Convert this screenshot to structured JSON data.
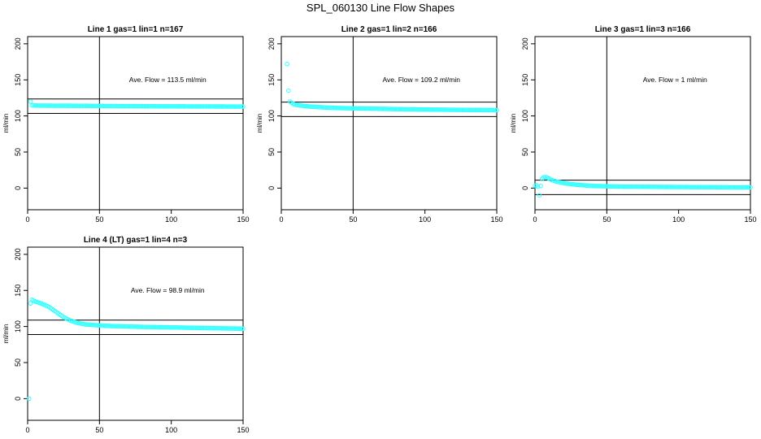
{
  "title": "SPL_060130  Line Flow Shapes",
  "colors": {
    "points": "#33ffff",
    "axes": "#000000",
    "background": "#ffffff"
  },
  "chart_data": [
    {
      "type": "scatter",
      "title": "Line 1 gas=1 lin=1 n=167",
      "ylabel": "ml/min",
      "annotation": "Ave. Flow =  113.5  ml/min",
      "xlim": [
        0,
        150
      ],
      "ylim": [
        -30,
        210
      ],
      "xticks": [
        0,
        50,
        100,
        150
      ],
      "yticks": [
        0,
        50,
        100,
        150,
        200
      ],
      "hlines": [
        123.5,
        103.5
      ],
      "vlines": [
        50
      ],
      "points": [
        [
          2,
          120
        ],
        [
          3,
          114.8
        ],
        [
          4,
          114.6
        ],
        [
          6,
          114.4
        ],
        [
          10,
          114.3
        ],
        [
          20,
          114.2
        ],
        [
          40,
          114
        ],
        [
          60,
          113.7
        ],
        [
          80,
          113.5
        ],
        [
          100,
          113.3
        ],
        [
          120,
          113.2
        ],
        [
          140,
          113.1
        ],
        [
          150,
          113
        ]
      ]
    },
    {
      "type": "scatter",
      "title": "Line 2 gas=1 lin=2 n=166",
      "ylabel": "ml/min",
      "annotation": "Ave. Flow =  109.2  ml/min",
      "xlim": [
        0,
        150
      ],
      "ylim": [
        -30,
        210
      ],
      "xticks": [
        0,
        50,
        100,
        150
      ],
      "yticks": [
        0,
        50,
        100,
        150,
        200
      ],
      "hlines": [
        119.2,
        99.2
      ],
      "vlines": [
        50
      ],
      "points": [
        [
          4,
          172
        ],
        [
          5,
          135
        ],
        [
          6,
          120
        ],
        [
          8,
          117
        ],
        [
          10,
          115.5
        ],
        [
          15,
          114
        ],
        [
          20,
          113
        ],
        [
          30,
          111.8
        ],
        [
          40,
          111
        ],
        [
          50,
          110.5
        ],
        [
          60,
          110.2
        ],
        [
          80,
          109.5
        ],
        [
          100,
          109
        ],
        [
          120,
          108.5
        ],
        [
          140,
          108.2
        ],
        [
          150,
          108
        ]
      ]
    },
    {
      "type": "scatter",
      "title": "Line 3 gas=1 lin=3 n=166",
      "ylabel": "ml/min",
      "annotation": "Ave. Flow =  1  ml/min",
      "xlim": [
        0,
        150
      ],
      "ylim": [
        -30,
        210
      ],
      "xticks": [
        0,
        50,
        100,
        150
      ],
      "yticks": [
        0,
        50,
        100,
        150,
        200
      ],
      "hlines": [
        11,
        -9
      ],
      "vlines": [
        50
      ],
      "points": [
        [
          0,
          3
        ],
        [
          1,
          4
        ],
        [
          2,
          2
        ],
        [
          3,
          -10
        ],
        [
          4,
          3
        ],
        [
          5,
          13
        ],
        [
          6,
          15
        ],
        [
          8,
          15
        ],
        [
          10,
          13
        ],
        [
          12,
          11
        ],
        [
          15,
          9
        ],
        [
          20,
          7
        ],
        [
          25,
          5.5
        ],
        [
          30,
          4.5
        ],
        [
          40,
          3
        ],
        [
          50,
          2.5
        ],
        [
          60,
          2
        ],
        [
          80,
          1.8
        ],
        [
          100,
          1.5
        ],
        [
          120,
          1.3
        ],
        [
          150,
          1
        ]
      ]
    },
    {
      "type": "scatter",
      "title": "Line 4 (LT) gas=1 lin=4 n=3",
      "ylabel": "ml/min",
      "annotation": "Ave. Flow =  98.9  ml/min",
      "xlim": [
        0,
        150
      ],
      "ylim": [
        -30,
        210
      ],
      "xticks": [
        0,
        50,
        100,
        150
      ],
      "yticks": [
        0,
        50,
        100,
        150,
        200
      ],
      "hlines": [
        108.9,
        88.9
      ],
      "vlines": [
        50
      ],
      "points": [
        [
          1,
          0
        ],
        [
          2,
          132
        ],
        [
          3,
          137
        ],
        [
          5,
          135
        ],
        [
          8,
          133
        ],
        [
          12,
          130
        ],
        [
          15,
          127
        ],
        [
          20,
          120
        ],
        [
          25,
          113
        ],
        [
          30,
          108
        ],
        [
          35,
          105
        ],
        [
          40,
          103
        ],
        [
          50,
          101.5
        ],
        [
          60,
          100.5
        ],
        [
          80,
          99.5
        ],
        [
          100,
          98.8
        ],
        [
          120,
          98
        ],
        [
          150,
          97
        ]
      ]
    }
  ]
}
